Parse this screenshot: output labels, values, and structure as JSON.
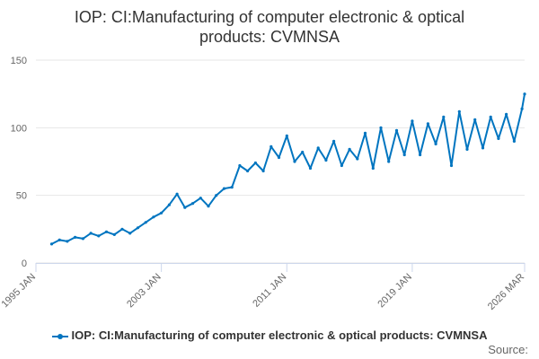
{
  "chart_data": {
    "type": "line",
    "title": "IOP: CI:Manufacturing of computer electronic & optical products: CVMNSA",
    "title_lines": [
      "IOP: CI:Manufacturing of computer electronic & optical",
      "products: CVMNSA"
    ],
    "x_ticks": [
      "1995 JAN",
      "2003 JAN",
      "2011 JAN",
      "2019 JAN",
      "2026 MAR"
    ],
    "y_ticks": [
      "0",
      "50",
      "100",
      "150"
    ],
    "ylim": [
      0,
      150
    ],
    "xlim": [
      "1995 JAN",
      "2026 MAR"
    ],
    "grid": "horizontal",
    "legend_position": "bottom",
    "source_label": "Source:",
    "series": [
      {
        "name": "IOP: CI:Manufacturing of computer electronic & optical products: CVMNSA",
        "color": "#0075c0",
        "x": [
          "1996 JAN",
          "1996 JUL",
          "1997 JAN",
          "1997 JUL",
          "1998 JAN",
          "1998 JUL",
          "1999 JAN",
          "1999 JUL",
          "2000 JAN",
          "2000 JUL",
          "2001 JAN",
          "2001 JUL",
          "2002 JAN",
          "2002 JUL",
          "2003 JAN",
          "2003 JUL",
          "2004 JAN",
          "2004 JUL",
          "2005 JAN",
          "2005 JUL",
          "2006 JAN",
          "2006 JUL",
          "2007 JAN",
          "2007 JUL",
          "2008 JAN",
          "2008 JUL",
          "2009 JAN",
          "2009 JUL",
          "2010 JAN",
          "2010 JUL",
          "2011 JAN",
          "2011 JUL",
          "2012 JAN",
          "2012 JUL",
          "2013 JAN",
          "2013 JUL",
          "2014 JAN",
          "2014 JUL",
          "2015 JAN",
          "2015 JUL",
          "2016 JAN",
          "2016 JUL",
          "2017 JAN",
          "2017 JUL",
          "2018 JAN",
          "2018 JUL",
          "2019 JAN",
          "2019 JUL",
          "2020 JAN",
          "2020 JUL",
          "2021 JAN",
          "2021 JUL",
          "2022 JAN",
          "2022 JUL",
          "2023 JAN",
          "2023 JUL",
          "2024 JAN",
          "2024 JUL",
          "2025 JAN",
          "2025 JUL",
          "2026 JAN",
          "2026 MAR"
        ],
        "values": [
          14,
          17,
          16,
          19,
          18,
          22,
          20,
          23,
          21,
          25,
          22,
          26,
          30,
          34,
          37,
          43,
          51,
          41,
          44,
          48,
          42,
          50,
          55,
          56,
          72,
          68,
          74,
          68,
          86,
          78,
          94,
          75,
          82,
          70,
          85,
          76,
          90,
          72,
          84,
          77,
          96,
          70,
          100,
          75,
          98,
          80,
          105,
          80,
          103,
          88,
          108,
          72,
          112,
          84,
          106,
          85,
          108,
          92,
          110,
          90,
          114,
          125
        ]
      }
    ]
  }
}
